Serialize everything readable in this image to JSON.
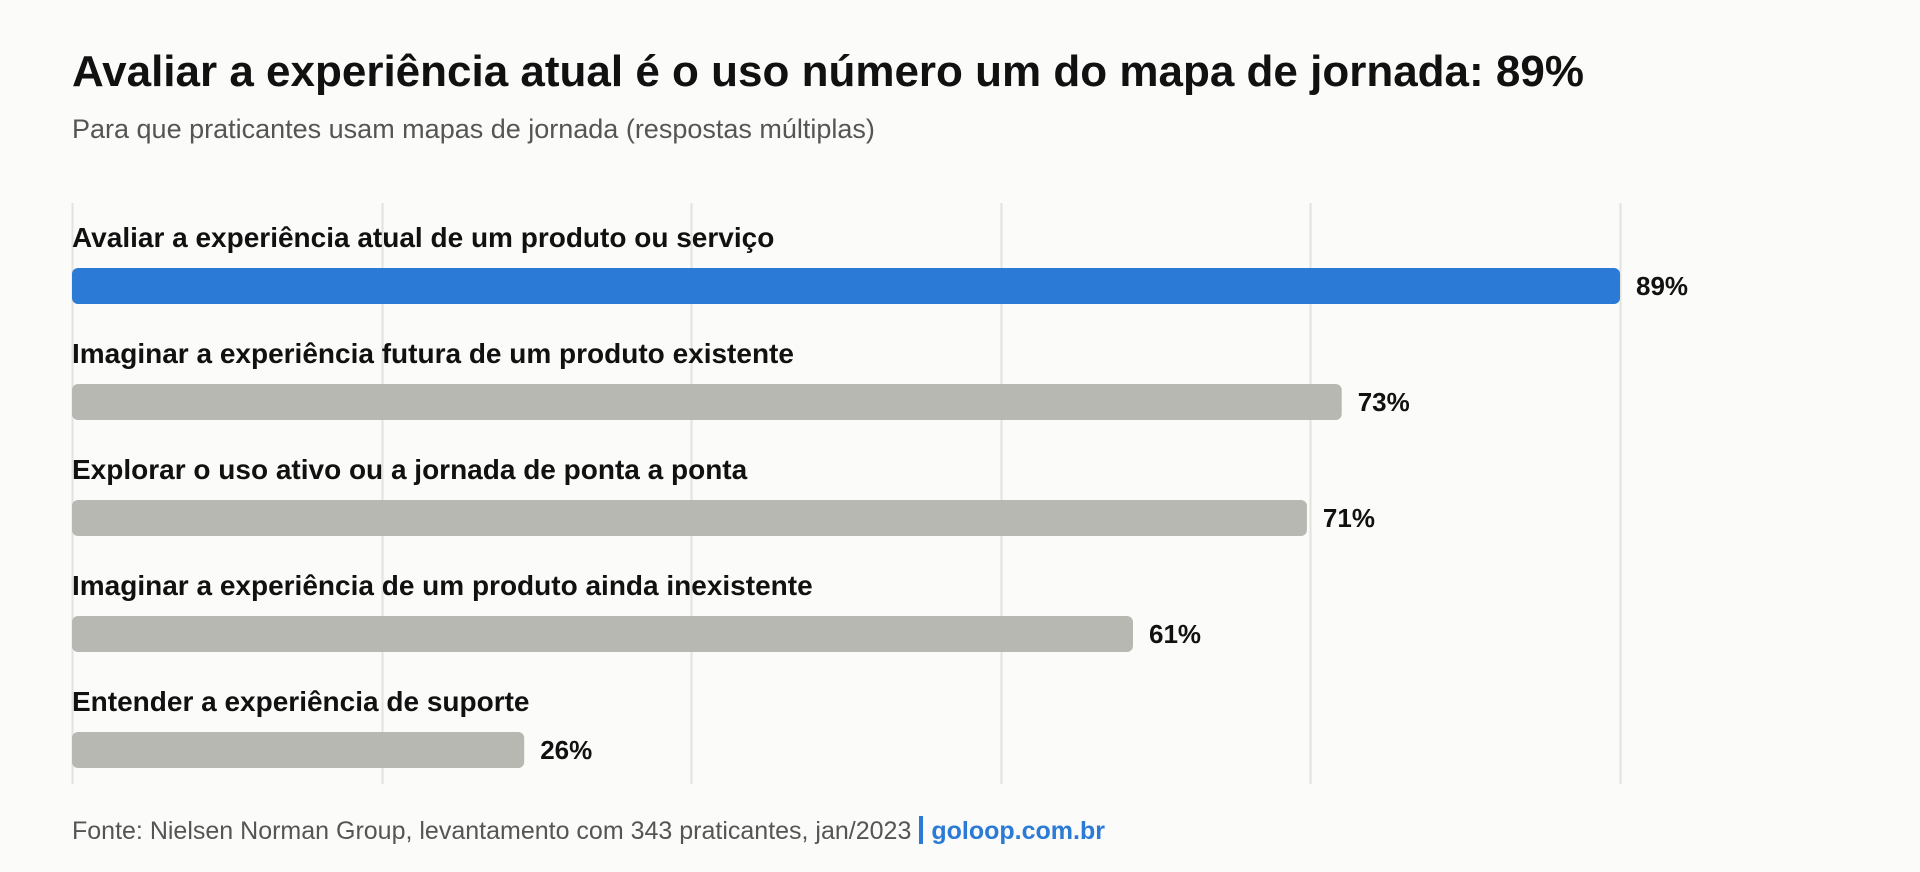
{
  "header": {
    "title": "Avaliar a experiência atual é o uso número um do mapa de jornada: 89%",
    "subtitle": "Para que praticantes usam mapas de jornada (respostas múltiplas)"
  },
  "chart_data": {
    "type": "bar",
    "orientation": "horizontal",
    "categories": [
      "Avaliar a experiência atual de um produto ou serviço",
      "Imaginar a experiência futura de um produto existente",
      "Explorar o uso ativo ou a jornada de ponta a ponta",
      "Imaginar a experiência de um produto ainda inexistente",
      "Entender a experiência de suporte"
    ],
    "values": [
      89,
      73,
      71,
      61,
      26
    ],
    "value_labels": [
      "89%",
      "73%",
      "71%",
      "61%",
      "26%"
    ],
    "highlight_index": 0,
    "xlim": [
      0,
      89
    ],
    "gridlines_at": [
      0,
      17.8,
      35.6,
      53.4,
      71.2,
      89
    ],
    "grid": true,
    "colors": {
      "highlight": "#2b7ad6",
      "default": "#b8b8b2",
      "grid": "#e2e2df"
    }
  },
  "footer": {
    "source": "Fonte: Nielsen Norman Group, levantamento com 343 praticantes, jan/2023",
    "brand": "goloop.com.br",
    "brand_color": "#2b7ad6"
  }
}
